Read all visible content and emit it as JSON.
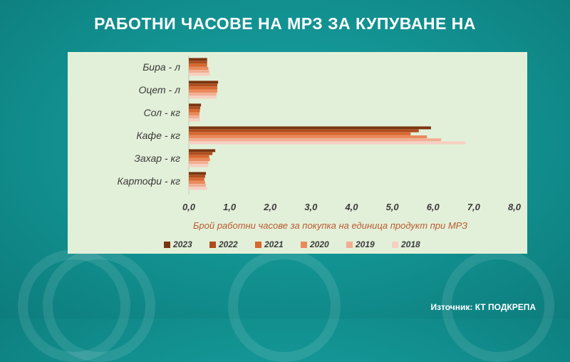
{
  "header": {
    "title": "РАБОТНИ ЧАСОВЕ НА МРЗ ЗА КУПУВАНЕ НА"
  },
  "source": {
    "text": "Източник: КТ ПОДКРЕПА"
  },
  "colors": {
    "2023": "#7a3510",
    "2022": "#b04c1c",
    "2021": "#d9662e",
    "2020": "#ea8a5c",
    "2019": "#f3ad92",
    "2018": "#f7cfc2",
    "panel": "#e3f0d9",
    "label": "#b85a30"
  },
  "chart_data": {
    "type": "bar",
    "orientation": "horizontal",
    "title": "",
    "xlabel": "Брой работни часове за покупка на единица продукт при МРЗ",
    "ylabel": "",
    "xlim": [
      0,
      8
    ],
    "xticks": [
      "0,0",
      "1,0",
      "2,0",
      "3,0",
      "4,0",
      "5,0",
      "6,0",
      "7,0",
      "8,0"
    ],
    "categories": [
      "Бира - л",
      "Оцет - л",
      "Сол - кг",
      "Кафе - кг",
      "Захар - кг",
      "Картофи - кг"
    ],
    "series": [
      {
        "name": "2023",
        "values": [
          0.45,
          0.72,
          0.3,
          5.95,
          0.65,
          0.42
        ]
      },
      {
        "name": "2022",
        "values": [
          0.45,
          0.7,
          0.28,
          5.65,
          0.58,
          0.4
        ]
      },
      {
        "name": "2021",
        "values": [
          0.45,
          0.7,
          0.27,
          5.45,
          0.5,
          0.38
        ]
      },
      {
        "name": "2020",
        "values": [
          0.48,
          0.7,
          0.26,
          5.85,
          0.52,
          0.4
        ]
      },
      {
        "name": "2019",
        "values": [
          0.5,
          0.68,
          0.26,
          6.2,
          0.48,
          0.42
        ]
      },
      {
        "name": "2018",
        "values": [
          0.52,
          0.68,
          0.27,
          6.8,
          0.48,
          0.45
        ]
      }
    ],
    "legend": "bottom",
    "grid": false
  }
}
